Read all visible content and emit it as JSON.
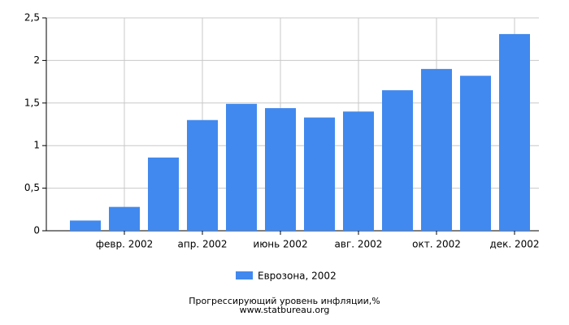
{
  "chart_data": {
    "type": "bar",
    "categories": [
      null,
      "февр. 2002",
      null,
      "апр. 2002",
      null,
      "июнь 2002",
      null,
      "авг. 2002",
      null,
      "окт. 2002",
      null,
      "дек. 2002"
    ],
    "series": [
      {
        "name": "Еврозона, 2002",
        "color": "#4189ee",
        "values": [
          0.12,
          0.28,
          0.86,
          1.3,
          1.49,
          1.44,
          1.33,
          1.4,
          1.65,
          1.9,
          1.82,
          2.31
        ]
      }
    ],
    "ylim": [
      0,
      2.5
    ],
    "yticks": [
      0,
      {
        "value": 0.5,
        "label": "0,5"
      },
      1,
      {
        "value": 1.5,
        "label": "1,5"
      },
      2,
      {
        "value": 2.5,
        "label": "2,5"
      }
    ],
    "grid": true,
    "legend": "bottom",
    "footer": [
      "Прогрессирующий уровень инфляции,%",
      "www.statbureau.org"
    ]
  }
}
